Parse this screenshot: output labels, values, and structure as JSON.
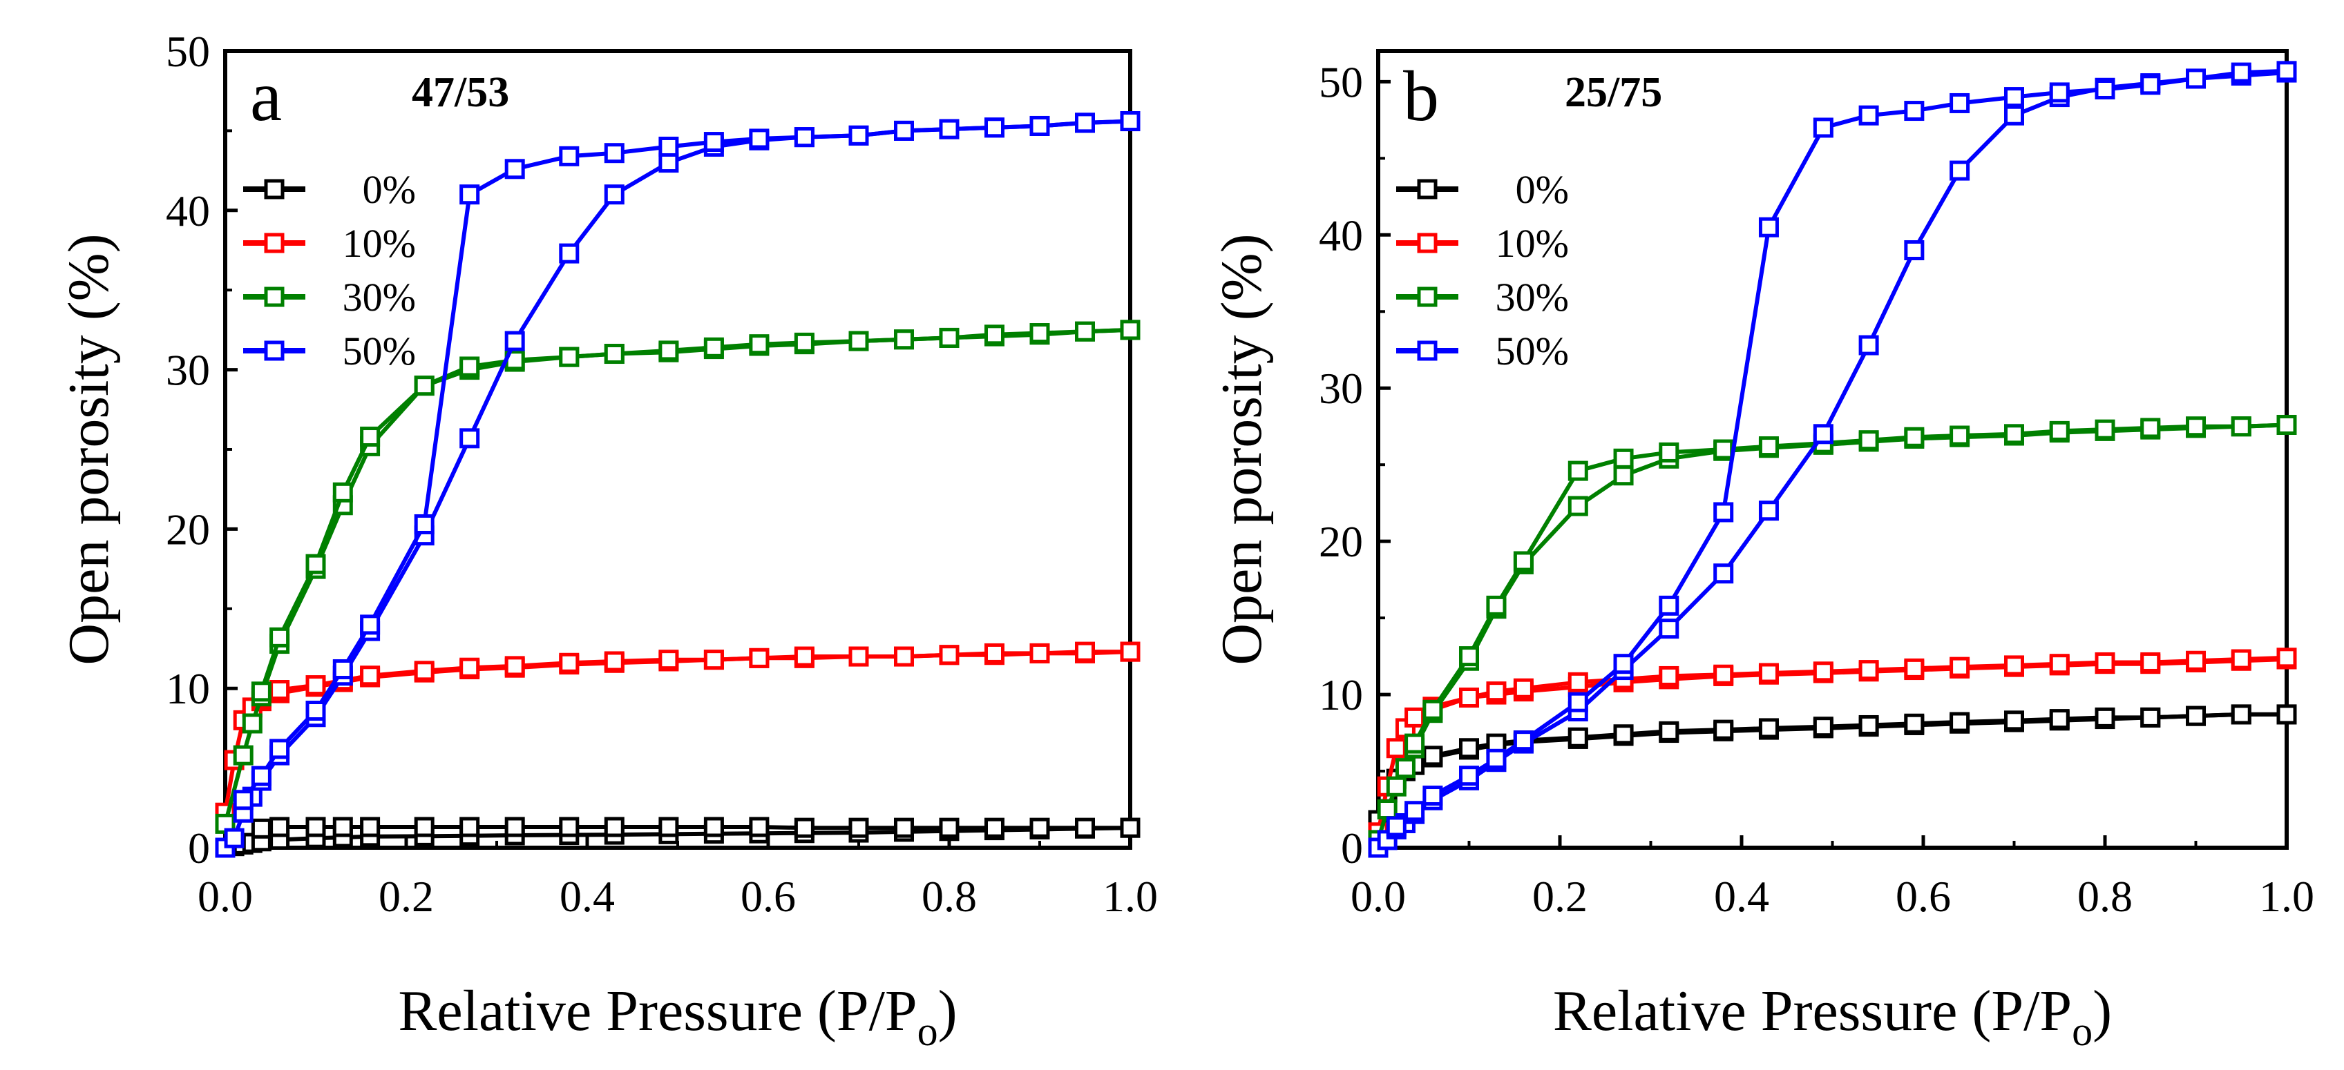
{
  "figure": {
    "type": "multi-panel line chart (sorption isotherms)"
  },
  "colors": {
    "0%": "#000000",
    "10%": "#ff0000",
    "30%": "#008000",
    "50%": "#0000ff"
  },
  "chart_data": [
    {
      "panel": "a",
      "title": "47/53",
      "type": "line",
      "marker": "open-square",
      "xlabel": "Relative Pressure (P/Po)",
      "xlabel_main": "Relative Pressure (P/P",
      "xlabel_sub": "o",
      "xlabel_close": ")",
      "ylabel": "Open porosity (%)",
      "xlim": [
        0,
        1.0
      ],
      "ylim": [
        0,
        50
      ],
      "xticks": [
        0.0,
        0.2,
        0.4,
        0.6,
        0.8,
        1.0
      ],
      "xtick_labels": [
        "0.0",
        "0.2",
        "0.4",
        "0.6",
        "0.8",
        "1.0"
      ],
      "yticks": [
        0,
        10,
        20,
        30,
        40,
        50
      ],
      "ytick_labels": [
        "0",
        "10",
        "20",
        "30",
        "40",
        "50"
      ],
      "legend": [
        "0%",
        "10%",
        "30%",
        "50%"
      ],
      "legend_position": "upper-left",
      "series": [
        {
          "name": "0%",
          "adsorption": {
            "x": [
              0.0,
              0.01,
              0.02,
              0.03,
              0.04,
              0.06,
              0.1,
              0.13,
              0.16,
              0.22,
              0.27,
              0.32,
              0.38,
              0.43,
              0.49,
              0.54,
              0.59,
              0.64,
              0.7,
              0.75,
              0.8,
              0.85,
              0.9,
              0.95,
              1.0
            ],
            "y": [
              0.0,
              0.1,
              0.2,
              0.3,
              0.4,
              0.5,
              0.6,
              0.65,
              0.7,
              0.72,
              0.75,
              0.78,
              0.8,
              0.82,
              0.85,
              0.88,
              0.9,
              0.92,
              0.95,
              1.0,
              1.05,
              1.1,
              1.15,
              1.2,
              1.25
            ]
          },
          "desorption": {
            "x": [
              1.0,
              0.95,
              0.9,
              0.85,
              0.8,
              0.75,
              0.7,
              0.64,
              0.59,
              0.54,
              0.49,
              0.43,
              0.38,
              0.32,
              0.27,
              0.22,
              0.16,
              0.13,
              0.1,
              0.06,
              0.04
            ],
            "y": [
              1.25,
              1.25,
              1.25,
              1.25,
              1.25,
              1.25,
              1.25,
              1.25,
              1.3,
              1.3,
              1.3,
              1.3,
              1.3,
              1.3,
              1.3,
              1.3,
              1.3,
              1.3,
              1.3,
              1.3,
              1.2
            ]
          }
        },
        {
          "name": "10%",
          "adsorption": {
            "x": [
              0.0,
              0.01,
              0.02,
              0.03,
              0.04,
              0.06,
              0.1,
              0.13,
              0.16,
              0.22,
              0.27,
              0.32,
              0.38,
              0.43,
              0.49,
              0.54,
              0.59,
              0.64,
              0.7,
              0.75,
              0.8,
              0.85,
              0.9,
              0.95,
              1.0
            ],
            "y": [
              2.2,
              5.5,
              8.0,
              8.8,
              9.2,
              9.7,
              10.1,
              10.4,
              10.7,
              11.0,
              11.2,
              11.3,
              11.5,
              11.6,
              11.7,
              11.8,
              11.9,
              11.9,
              12.0,
              12.0,
              12.1,
              12.1,
              12.2,
              12.2,
              12.3
            ]
          },
          "desorption": {
            "x": [
              1.0,
              0.95,
              0.9,
              0.85,
              0.8,
              0.75,
              0.7,
              0.64,
              0.59,
              0.54,
              0.49,
              0.43,
              0.38,
              0.32,
              0.27,
              0.22,
              0.16,
              0.13,
              0.1,
              0.06,
              0.04
            ],
            "y": [
              12.3,
              12.3,
              12.2,
              12.2,
              12.1,
              12.0,
              12.0,
              12.0,
              11.9,
              11.8,
              11.8,
              11.7,
              11.6,
              11.4,
              11.3,
              11.1,
              10.8,
              10.5,
              10.2,
              9.9,
              9.4
            ]
          }
        },
        {
          "name": "30%",
          "adsorption": {
            "x": [
              0.0,
              0.02,
              0.03,
              0.04,
              0.06,
              0.1,
              0.13,
              0.16,
              0.22,
              0.27,
              0.32,
              0.38,
              0.43,
              0.49,
              0.54,
              0.59,
              0.64,
              0.7,
              0.75,
              0.8,
              0.85,
              0.9,
              0.95,
              1.0
            ],
            "y": [
              1.5,
              5.8,
              7.8,
              9.5,
              12.8,
              17.5,
              21.5,
              25.2,
              29.0,
              30.0,
              30.5,
              30.8,
              31.0,
              31.1,
              31.3,
              31.5,
              31.6,
              31.8,
              31.9,
              32.0,
              32.1,
              32.2,
              32.4,
              32.5
            ]
          },
          "desorption": {
            "x": [
              1.0,
              0.95,
              0.9,
              0.85,
              0.8,
              0.75,
              0.7,
              0.64,
              0.59,
              0.54,
              0.49,
              0.43,
              0.38,
              0.32,
              0.27,
              0.22,
              0.16,
              0.13,
              0.1,
              0.06,
              0.04
            ],
            "y": [
              32.5,
              32.4,
              32.3,
              32.2,
              32.0,
              31.9,
              31.8,
              31.7,
              31.6,
              31.4,
              31.2,
              31.0,
              30.8,
              30.6,
              30.2,
              29.0,
              25.8,
              22.3,
              17.8,
              13.2,
              9.8
            ]
          }
        },
        {
          "name": "50%",
          "adsorption": {
            "x": [
              0.0,
              0.01,
              0.02,
              0.03,
              0.04,
              0.06,
              0.1,
              0.13,
              0.16,
              0.22,
              0.27,
              0.32,
              0.38,
              0.43,
              0.49,
              0.54,
              0.59,
              0.64,
              0.7,
              0.75,
              0.8,
              0.85,
              0.9,
              0.95,
              1.0
            ],
            "y": [
              0.0,
              0.6,
              2.2,
              3.2,
              4.2,
              5.8,
              8.2,
              10.8,
              13.6,
              19.6,
              25.7,
              31.8,
              37.3,
              41.0,
              43.0,
              44.0,
              44.4,
              44.6,
              44.7,
              45.0,
              45.1,
              45.2,
              45.3,
              45.5,
              45.6
            ]
          },
          "desorption": {
            "x": [
              1.0,
              0.95,
              0.9,
              0.85,
              0.8,
              0.75,
              0.7,
              0.64,
              0.59,
              0.54,
              0.49,
              0.43,
              0.38,
              0.32,
              0.27,
              0.22,
              0.16,
              0.13,
              0.1,
              0.06,
              0.04,
              0.02
            ],
            "y": [
              45.6,
              45.5,
              45.3,
              45.2,
              45.1,
              45.0,
              44.7,
              44.6,
              44.5,
              44.3,
              44.0,
              43.6,
              43.4,
              42.6,
              41.0,
              20.3,
              14.0,
              11.2,
              8.6,
              6.2,
              4.5,
              3.0
            ]
          }
        }
      ]
    },
    {
      "panel": "b",
      "title": "25/75",
      "type": "line",
      "marker": "open-square",
      "xlabel": "Relative Pressure (P/Po)",
      "xlabel_main": "Relative Pressure (P/P",
      "xlabel_sub": "o",
      "xlabel_close": ")",
      "ylabel": "Open porosity (%)",
      "xlim": [
        0,
        1.0
      ],
      "ylim": [
        0,
        52
      ],
      "xticks": [
        0.0,
        0.2,
        0.4,
        0.6,
        0.8,
        1.0
      ],
      "xtick_labels": [
        "0.0",
        "0.2",
        "0.4",
        "0.6",
        "0.8",
        "1.0"
      ],
      "yticks": [
        0,
        10,
        20,
        30,
        40,
        50
      ],
      "ytick_labels": [
        "0",
        "10",
        "20",
        "30",
        "40",
        "50"
      ],
      "legend": [
        "0%",
        "10%",
        "30%",
        "50%"
      ],
      "legend_position": "upper-left",
      "series": [
        {
          "name": "0%",
          "adsorption": {
            "x": [
              0.0,
              0.01,
              0.02,
              0.03,
              0.04,
              0.06,
              0.1,
              0.13,
              0.16,
              0.22,
              0.27,
              0.32,
              0.38,
              0.43,
              0.49,
              0.54,
              0.59,
              0.64,
              0.7,
              0.75,
              0.8,
              0.85,
              0.9,
              0.95,
              1.0
            ],
            "y": [
              1.8,
              3.6,
              4.5,
              5.0,
              5.4,
              5.9,
              6.4,
              6.7,
              6.9,
              7.1,
              7.3,
              7.5,
              7.6,
              7.7,
              7.8,
              7.9,
              8.0,
              8.1,
              8.2,
              8.3,
              8.4,
              8.5,
              8.6,
              8.7,
              8.7
            ]
          },
          "desorption": {
            "x": [
              1.0,
              0.95,
              0.9,
              0.85,
              0.8,
              0.75,
              0.7,
              0.64,
              0.59,
              0.54,
              0.49,
              0.43,
              0.38,
              0.32,
              0.27,
              0.22,
              0.16,
              0.13,
              0.1,
              0.06
            ],
            "y": [
              8.7,
              8.7,
              8.6,
              8.5,
              8.5,
              8.4,
              8.3,
              8.2,
              8.1,
              8.0,
              7.9,
              7.8,
              7.7,
              7.6,
              7.4,
              7.2,
              7.0,
              6.8,
              6.5,
              6.0
            ]
          }
        },
        {
          "name": "10%",
          "adsorption": {
            "x": [
              0.0,
              0.01,
              0.02,
              0.03,
              0.04,
              0.06,
              0.1,
              0.13,
              0.16,
              0.22,
              0.27,
              0.32,
              0.38,
              0.43,
              0.49,
              0.54,
              0.59,
              0.64,
              0.7,
              0.75,
              0.8,
              0.85,
              0.9,
              0.95,
              1.0
            ],
            "y": [
              1.0,
              4.0,
              6.5,
              7.8,
              8.5,
              9.2,
              9.8,
              10.0,
              10.2,
              10.5,
              10.8,
              11.0,
              11.2,
              11.3,
              11.4,
              11.5,
              11.6,
              11.7,
              11.8,
              11.9,
              12.0,
              12.0,
              12.1,
              12.2,
              12.3
            ]
          },
          "desorption": {
            "x": [
              1.0,
              0.95,
              0.9,
              0.85,
              0.8,
              0.75,
              0.7,
              0.64,
              0.59,
              0.54,
              0.49,
              0.43,
              0.38,
              0.32,
              0.27,
              0.22,
              0.16,
              0.13,
              0.1,
              0.06
            ],
            "y": [
              12.4,
              12.3,
              12.2,
              12.1,
              12.1,
              12.0,
              11.9,
              11.8,
              11.7,
              11.6,
              11.5,
              11.4,
              11.3,
              11.2,
              11.0,
              10.8,
              10.4,
              10.2,
              9.8,
              9.0
            ]
          }
        },
        {
          "name": "30%",
          "adsorption": {
            "x": [
              0.0,
              0.01,
              0.02,
              0.03,
              0.04,
              0.06,
              0.1,
              0.13,
              0.16,
              0.22,
              0.27,
              0.32,
              0.38,
              0.43,
              0.49,
              0.54,
              0.59,
              0.64,
              0.7,
              0.75,
              0.8,
              0.85,
              0.9,
              0.95,
              1.0
            ],
            "y": [
              0.5,
              2.5,
              4.0,
              5.2,
              6.5,
              8.8,
              12.2,
              15.6,
              18.5,
              22.3,
              24.3,
              25.4,
              25.9,
              26.1,
              26.3,
              26.5,
              26.7,
              26.8,
              26.9,
              27.1,
              27.2,
              27.3,
              27.4,
              27.5,
              27.6
            ]
          },
          "desorption": {
            "x": [
              1.0,
              0.95,
              0.9,
              0.85,
              0.8,
              0.75,
              0.7,
              0.64,
              0.59,
              0.54,
              0.49,
              0.43,
              0.38,
              0.32,
              0.27,
              0.22,
              0.16,
              0.13,
              0.1,
              0.06,
              0.04
            ],
            "y": [
              27.6,
              27.5,
              27.5,
              27.4,
              27.3,
              27.2,
              27.0,
              26.9,
              26.8,
              26.6,
              26.4,
              26.2,
              26.0,
              25.8,
              25.4,
              24.6,
              18.7,
              15.8,
              12.5,
              9.0,
              6.8
            ]
          }
        },
        {
          "name": "50%",
          "adsorption": {
            "x": [
              0.0,
              0.01,
              0.02,
              0.03,
              0.04,
              0.06,
              0.1,
              0.13,
              0.16,
              0.22,
              0.27,
              0.32,
              0.38,
              0.43,
              0.49,
              0.54,
              0.59,
              0.64,
              0.7,
              0.75,
              0.8,
              0.85,
              0.9,
              0.95,
              1.0
            ],
            "y": [
              0.0,
              0.5,
              1.2,
              1.6,
              2.2,
              3.1,
              4.4,
              5.6,
              6.8,
              8.9,
              11.6,
              14.3,
              17.9,
              22.0,
              27.0,
              32.8,
              39.0,
              44.2,
              47.8,
              49.0,
              49.6,
              49.9,
              50.2,
              50.4,
              50.6
            ]
          },
          "desorption": {
            "x": [
              1.0,
              0.95,
              0.9,
              0.85,
              0.8,
              0.75,
              0.7,
              0.64,
              0.59,
              0.54,
              0.49,
              0.43,
              0.38,
              0.32,
              0.27,
              0.22,
              0.16,
              0.13,
              0.1,
              0.06,
              0.04,
              0.02
            ],
            "y": [
              50.7,
              50.6,
              50.2,
              49.8,
              49.5,
              49.3,
              49.0,
              48.6,
              48.1,
              47.8,
              47.0,
              40.5,
              21.9,
              15.8,
              12.0,
              9.5,
              7.0,
              5.8,
              4.7,
              3.4,
              2.4,
              1.4
            ]
          }
        }
      ]
    }
  ]
}
